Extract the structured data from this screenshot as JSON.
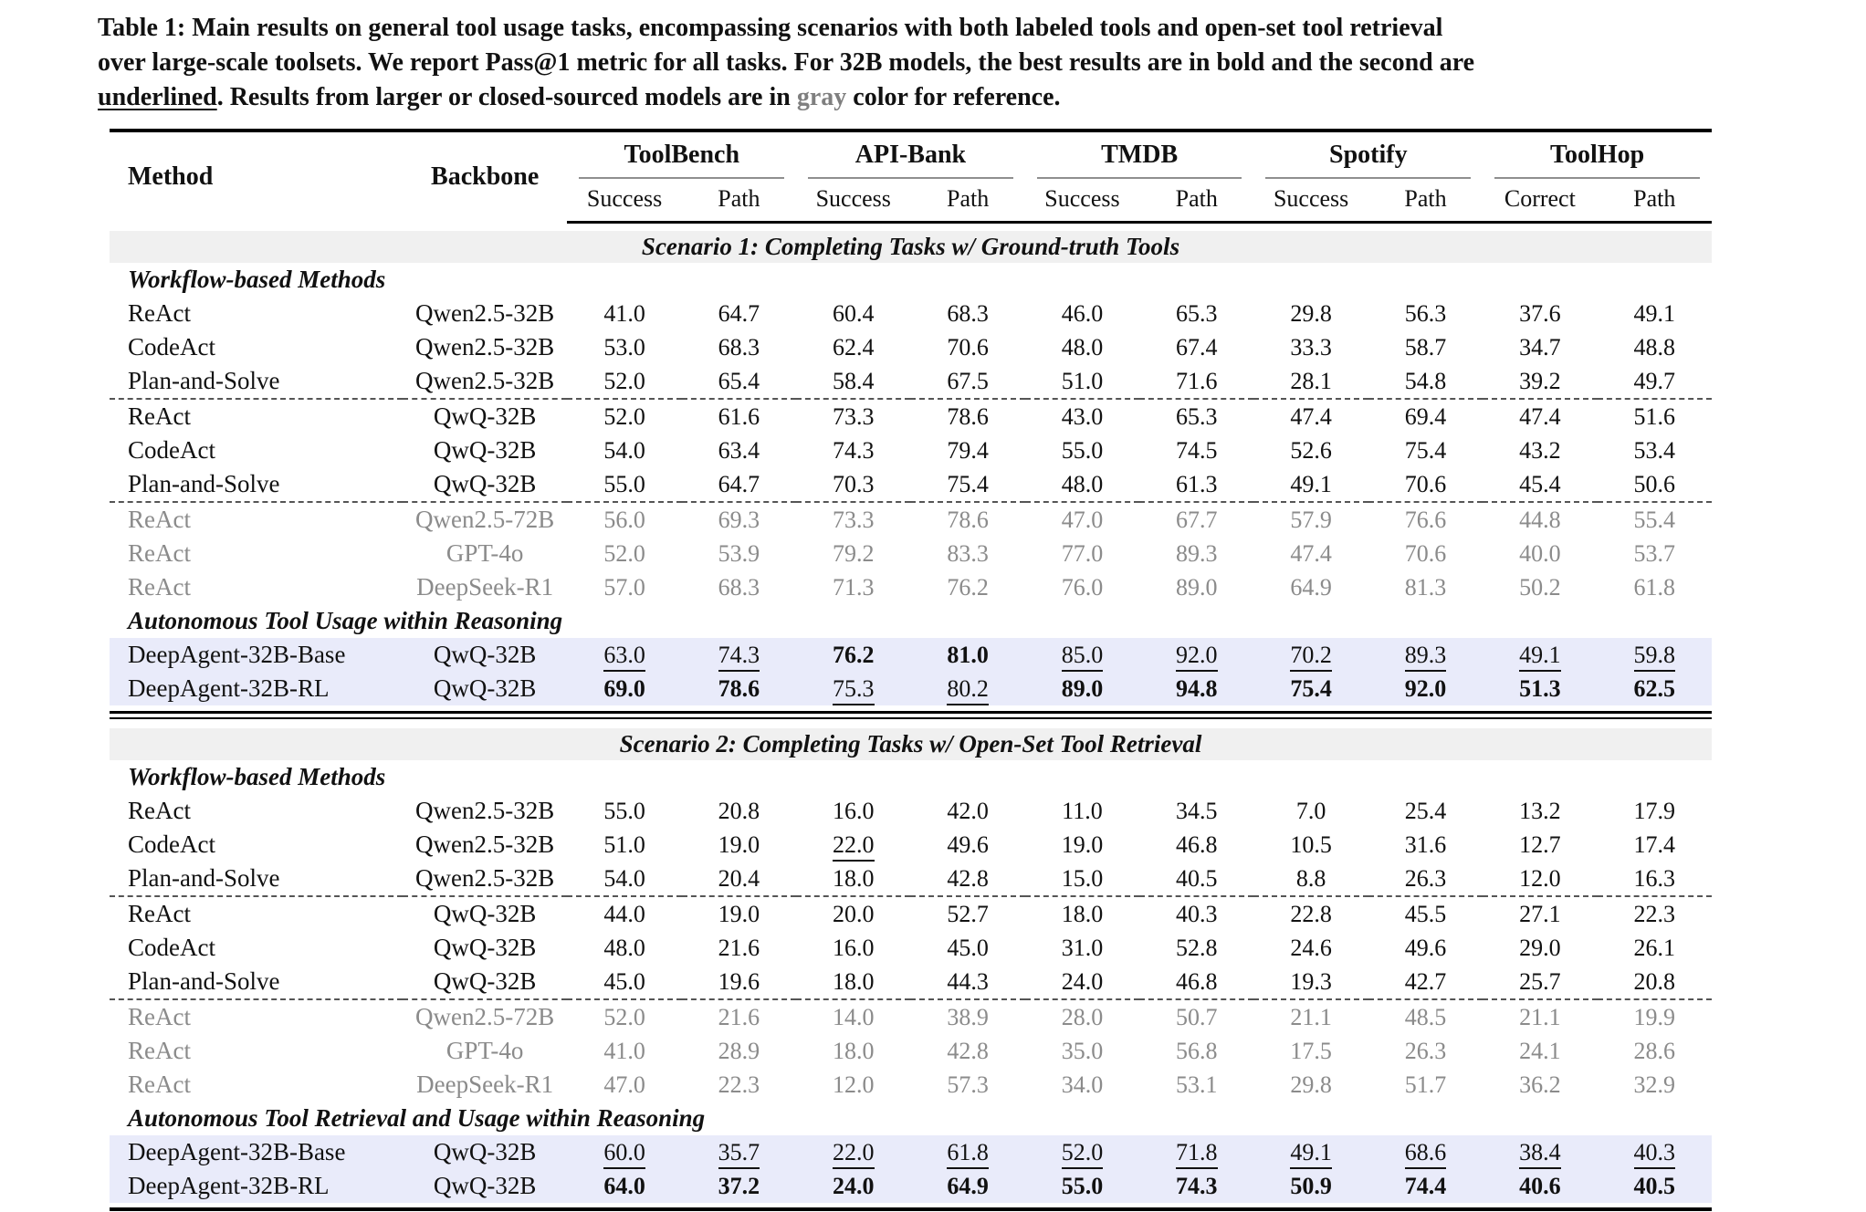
{
  "colors": {
    "highlight_row_bg": "#e9ebfa",
    "scenario_band_bg": "#f0f0f0",
    "gray_text": "#8b8b8b",
    "rule_color": "#000000",
    "cmidrule_color": "#8f8f8f"
  },
  "caption": {
    "lines": [
      [
        {
          "t": "Table 1: Main results on general tool usage tasks, encompassing scenarios with both labeled tools and open-set tool retrieval"
        }
      ],
      [
        {
          "t": "over large-scale toolsets. We report Pass@1 metric for all tasks. For 32B models, the best results are in bold and the second are"
        }
      ],
      [
        {
          "t": "underlined",
          "u": true
        },
        {
          "t": ". Results from larger or closed-sourced models are in "
        },
        {
          "t": "gray",
          "gray": true
        },
        {
          "t": " color for reference."
        }
      ]
    ]
  },
  "table": {
    "header": {
      "method": "Method",
      "backbone": "Backbone",
      "groups": [
        {
          "label": "ToolBench",
          "sub": [
            "Success",
            "Path"
          ]
        },
        {
          "label": "API-Bank",
          "sub": [
            "Success",
            "Path"
          ]
        },
        {
          "label": "TMDB",
          "sub": [
            "Success",
            "Path"
          ]
        },
        {
          "label": "Spotify",
          "sub": [
            "Success",
            "Path"
          ]
        },
        {
          "label": "ToolHop",
          "sub": [
            "Correct",
            "Path"
          ]
        }
      ]
    },
    "scenarios": [
      {
        "title": "Scenario 1: Completing Tasks w/ Ground-truth Tools",
        "rows": [
          {
            "section": "Workflow-based Methods"
          },
          {
            "method": "ReAct",
            "backbone": "Qwen2.5-32B",
            "values": [
              "41.0",
              "64.7",
              "60.4",
              "68.3",
              "46.0",
              "65.3",
              "29.8",
              "56.3",
              "37.6",
              "49.1"
            ]
          },
          {
            "method": "CodeAct",
            "backbone": "Qwen2.5-32B",
            "values": [
              "53.0",
              "68.3",
              "62.4",
              "70.6",
              "48.0",
              "67.4",
              "33.3",
              "58.7",
              "34.7",
              "48.8"
            ]
          },
          {
            "method": "Plan-and-Solve",
            "backbone": "Qwen2.5-32B",
            "values": [
              "52.0",
              "65.4",
              "58.4",
              "67.5",
              "51.0",
              "71.6",
              "28.1",
              "54.8",
              "39.2",
              "49.7"
            ]
          },
          {
            "method": "ReAct",
            "backbone": "QwQ-32B",
            "dashed": true,
            "values": [
              "52.0",
              "61.6",
              "73.3",
              "78.6",
              "43.0",
              "65.3",
              "47.4",
              "69.4",
              "47.4",
              "51.6"
            ]
          },
          {
            "method": "CodeAct",
            "backbone": "QwQ-32B",
            "values": [
              "54.0",
              "63.4",
              "74.3",
              "79.4",
              "55.0",
              "74.5",
              "52.6",
              "75.4",
              "43.2",
              "53.4"
            ]
          },
          {
            "method": "Plan-and-Solve",
            "backbone": "QwQ-32B",
            "values": [
              "55.0",
              "64.7",
              "70.3",
              "75.4",
              "48.0",
              "61.3",
              "49.1",
              "70.6",
              "45.4",
              "50.6"
            ]
          },
          {
            "method": "ReAct",
            "backbone": "Qwen2.5-72B",
            "dashed": true,
            "gray": true,
            "values": [
              "56.0",
              "69.3",
              "73.3",
              "78.6",
              "47.0",
              "67.7",
              "57.9",
              "76.6",
              "44.8",
              "55.4"
            ]
          },
          {
            "method": "ReAct",
            "backbone": "GPT-4o",
            "gray": true,
            "values": [
              "52.0",
              "53.9",
              "79.2",
              "83.3",
              "77.0",
              "89.3",
              "47.4",
              "70.6",
              "40.0",
              "53.7"
            ]
          },
          {
            "method": "ReAct",
            "backbone": "DeepSeek-R1",
            "gray": true,
            "values": [
              "57.0",
              "68.3",
              "71.3",
              "76.2",
              "76.0",
              "89.0",
              "64.9",
              "81.3",
              "50.2",
              "61.8"
            ]
          },
          {
            "section": "Autonomous Tool Usage within Reasoning"
          },
          {
            "method": "DeepAgent-32B-Base",
            "backbone": "QwQ-32B",
            "highlight": true,
            "values": [
              "63.0",
              "74.3",
              "76.2",
              "81.0",
              "85.0",
              "92.0",
              "70.2",
              "89.3",
              "49.1",
              "59.8"
            ],
            "fmt": [
              "u",
              "u",
              "b",
              "b",
              "u",
              "u",
              "u",
              "u",
              "u",
              "u"
            ]
          },
          {
            "method": "DeepAgent-32B-RL",
            "backbone": "QwQ-32B",
            "highlight": true,
            "values": [
              "69.0",
              "78.6",
              "75.3",
              "80.2",
              "89.0",
              "94.8",
              "75.4",
              "92.0",
              "51.3",
              "62.5"
            ],
            "fmt": [
              "b",
              "b",
              "u",
              "u",
              "b",
              "b",
              "b",
              "b",
              "b",
              "b"
            ]
          }
        ]
      },
      {
        "title": "Scenario 2: Completing Tasks w/ Open-Set Tool Retrieval",
        "rows": [
          {
            "section": "Workflow-based Methods"
          },
          {
            "method": "ReAct",
            "backbone": "Qwen2.5-32B",
            "values": [
              "55.0",
              "20.8",
              "16.0",
              "42.0",
              "11.0",
              "34.5",
              "7.0",
              "25.4",
              "13.2",
              "17.9"
            ]
          },
          {
            "method": "CodeAct",
            "backbone": "Qwen2.5-32B",
            "values": [
              "51.0",
              "19.0",
              "22.0",
              "49.6",
              "19.0",
              "46.8",
              "10.5",
              "31.6",
              "12.7",
              "17.4"
            ],
            "fmt": [
              "",
              "",
              "u",
              "",
              "",
              "",
              "",
              "",
              "",
              ""
            ]
          },
          {
            "method": "Plan-and-Solve",
            "backbone": "Qwen2.5-32B",
            "values": [
              "54.0",
              "20.4",
              "18.0",
              "42.8",
              "15.0",
              "40.5",
              "8.8",
              "26.3",
              "12.0",
              "16.3"
            ]
          },
          {
            "method": "ReAct",
            "backbone": "QwQ-32B",
            "dashed": true,
            "values": [
              "44.0",
              "19.0",
              "20.0",
              "52.7",
              "18.0",
              "40.3",
              "22.8",
              "45.5",
              "27.1",
              "22.3"
            ]
          },
          {
            "method": "CodeAct",
            "backbone": "QwQ-32B",
            "values": [
              "48.0",
              "21.6",
              "16.0",
              "45.0",
              "31.0",
              "52.8",
              "24.6",
              "49.6",
              "29.0",
              "26.1"
            ]
          },
          {
            "method": "Plan-and-Solve",
            "backbone": "QwQ-32B",
            "values": [
              "45.0",
              "19.6",
              "18.0",
              "44.3",
              "24.0",
              "46.8",
              "19.3",
              "42.7",
              "25.7",
              "20.8"
            ]
          },
          {
            "method": "ReAct",
            "backbone": "Qwen2.5-72B",
            "dashed": true,
            "gray": true,
            "values": [
              "52.0",
              "21.6",
              "14.0",
              "38.9",
              "28.0",
              "50.7",
              "21.1",
              "48.5",
              "21.1",
              "19.9"
            ]
          },
          {
            "method": "ReAct",
            "backbone": "GPT-4o",
            "gray": true,
            "values": [
              "41.0",
              "28.9",
              "18.0",
              "42.8",
              "35.0",
              "56.8",
              "17.5",
              "26.3",
              "24.1",
              "28.6"
            ]
          },
          {
            "method": "ReAct",
            "backbone": "DeepSeek-R1",
            "gray": true,
            "values": [
              "47.0",
              "22.3",
              "12.0",
              "57.3",
              "34.0",
              "53.1",
              "29.8",
              "51.7",
              "36.2",
              "32.9"
            ]
          },
          {
            "section": "Autonomous Tool Retrieval and Usage within Reasoning"
          },
          {
            "method": "DeepAgent-32B-Base",
            "backbone": "QwQ-32B",
            "highlight": true,
            "values": [
              "60.0",
              "35.7",
              "22.0",
              "61.8",
              "52.0",
              "71.8",
              "49.1",
              "68.6",
              "38.4",
              "40.3"
            ],
            "fmt": [
              "u",
              "u",
              "u",
              "u",
              "u",
              "u",
              "u",
              "u",
              "u",
              "u"
            ]
          },
          {
            "method": "DeepAgent-32B-RL",
            "backbone": "QwQ-32B",
            "highlight": true,
            "values": [
              "64.0",
              "37.2",
              "24.0",
              "64.9",
              "55.0",
              "74.3",
              "50.9",
              "74.4",
              "40.6",
              "40.5"
            ],
            "fmt": [
              "b",
              "b",
              "b",
              "b",
              "b",
              "b",
              "b",
              "b",
              "b",
              "b"
            ]
          }
        ]
      }
    ]
  }
}
